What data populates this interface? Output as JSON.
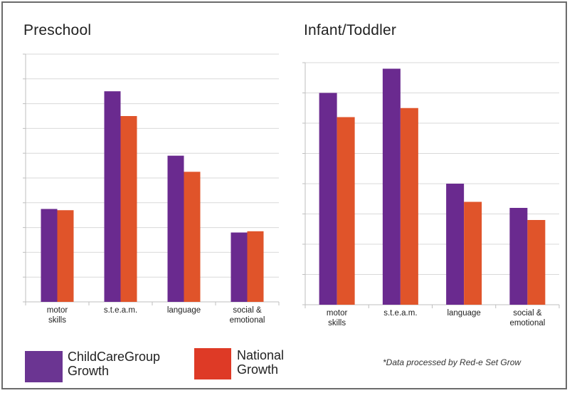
{
  "colors": {
    "childcare": "#6a2a8f",
    "national": "#e0542a",
    "grid": "#d9d9d9",
    "axis": "#bfbfbf",
    "legend_childcare": "#6b3592",
    "legend_national": "#de3a26"
  },
  "legend": {
    "childcare_line1": "ChildCareGroup",
    "childcare_line2": "Growth",
    "national_line1": "National",
    "national_line2": "Growth"
  },
  "footnote": "*Data processed by Red-e Set Grow",
  "chart_data": [
    {
      "type": "bar",
      "title": "Preschool",
      "categories": [
        [
          "motor",
          "skills"
        ],
        [
          "s.t.e.a.m."
        ],
        [
          "language"
        ],
        [
          "social &",
          "emotional"
        ]
      ],
      "series": [
        {
          "name": "ChildCareGroup Growth",
          "values": [
            3.75,
            8.5,
            5.9,
            2.8
          ]
        },
        {
          "name": "National Growth",
          "values": [
            3.7,
            7.5,
            5.25,
            2.85
          ]
        }
      ],
      "ylim": [
        0,
        10
      ],
      "grid": true,
      "legend": "bottom"
    },
    {
      "type": "bar",
      "title": "Infant/Toddler",
      "categories": [
        [
          "motor",
          "skills"
        ],
        [
          "s.t.e.a.m."
        ],
        [
          "language"
        ],
        [
          "social &",
          "emotional"
        ]
      ],
      "series": [
        {
          "name": "ChildCareGroup Growth",
          "values": [
            7.0,
            7.8,
            4.0,
            3.2
          ]
        },
        {
          "name": "National Growth",
          "values": [
            6.2,
            6.5,
            3.4,
            2.8
          ]
        }
      ],
      "ylim": [
        0,
        8
      ],
      "grid": true,
      "legend": "bottom"
    }
  ]
}
